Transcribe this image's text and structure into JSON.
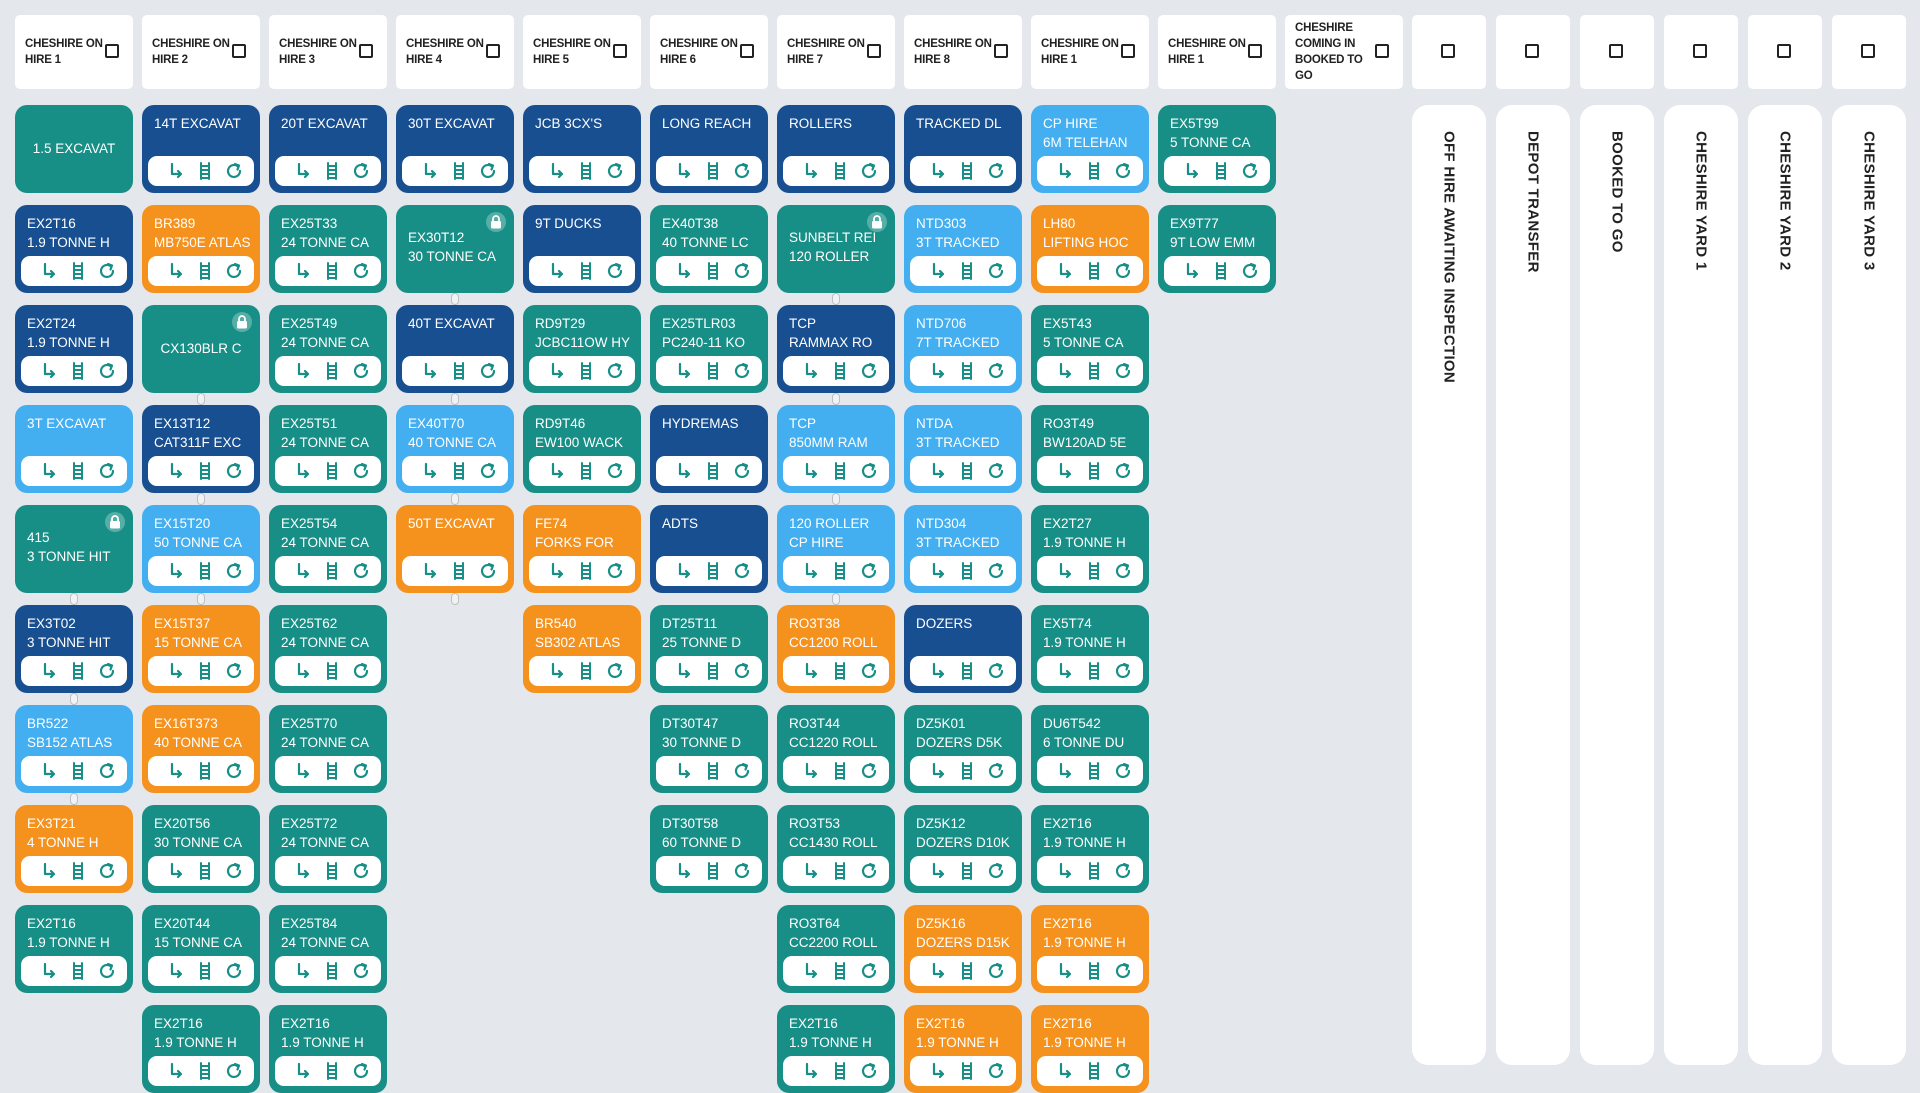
{
  "colors": {
    "teal": "#178f86",
    "navy": "#184f91",
    "sky": "#43aef0",
    "orange": "#f5921e",
    "background": "#e4e7eb"
  },
  "icons": [
    "link-icon",
    "ladder-icon",
    "refresh-icon",
    "lock-icon",
    "checkbox-icon"
  ],
  "headers": [
    {
      "label": "CHESHIRE ON HIRE 1"
    },
    {
      "label": "CHESHIRE ON HIRE 2"
    },
    {
      "label": "CHESHIRE ON HIRE 3"
    },
    {
      "label": "CHESHIRE ON HIRE 4"
    },
    {
      "label": "CHESHIRE ON HIRE 5"
    },
    {
      "label": "CHESHIRE ON HIRE 6"
    },
    {
      "label": "CHESHIRE ON HIRE 7"
    },
    {
      "label": "CHESHIRE ON HIRE 8"
    },
    {
      "label": "CHESHIRE ON HIRE 1"
    },
    {
      "label": "CHESHIRE ON HIRE 1"
    },
    {
      "label": "CHESHIRE COMING IN BOOKED TO GO"
    },
    {
      "label": ""
    },
    {
      "label": ""
    },
    {
      "label": ""
    },
    {
      "label": ""
    },
    {
      "label": ""
    },
    {
      "label": ""
    }
  ],
  "lanes": [
    {
      "label": "OFF HIRE AWAITING INSPECTION"
    },
    {
      "label": "DEPOT TRANSFER"
    },
    {
      "label": "BOOKED TO GO"
    },
    {
      "label": "CHESHIRE YARD 1"
    },
    {
      "label": "CHESHIRE YARD 2"
    },
    {
      "label": "CHESHIRE YARD 3"
    }
  ],
  "columns": [
    [
      {
        "l1": "1.5 EXCAVAT",
        "l2": "",
        "color": "teal",
        "bar": false
      },
      {
        "l1": "EX2T16",
        "l2": "1.9 TONNE H",
        "color": "navy",
        "bar": true
      },
      {
        "l1": "EX2T24",
        "l2": "1.9 TONNE H",
        "color": "navy",
        "bar": true
      },
      {
        "l1": "3T EXCAVAT",
        "l2": "",
        "color": "sky",
        "bar": true
      },
      {
        "l1": "415",
        "l2": "3 TONNE HIT",
        "color": "teal",
        "bar": false,
        "lock": true
      },
      {
        "l1": "EX3T02",
        "l2": "3 TONNE HIT",
        "color": "navy",
        "bar": true
      },
      {
        "l1": "BR522",
        "l2": "SB152 ATLAS",
        "color": "sky",
        "bar": true
      },
      {
        "l1": "EX3T21",
        "l2": "4 TONNE H",
        "color": "orange",
        "bar": true
      },
      {
        "l1": "EX2T16",
        "l2": "1.9 TONNE H",
        "color": "teal",
        "bar": true
      }
    ],
    [
      {
        "l1": "14T EXCAVAT",
        "l2": "",
        "color": "navy",
        "bar": true
      },
      {
        "l1": "BR389",
        "l2": "MB750E ATLAS",
        "color": "orange",
        "bar": true
      },
      {
        "l1": "CX130BLR C",
        "l2": "",
        "color": "teal",
        "bar": false,
        "lock": true
      },
      {
        "l1": "EX13T12",
        "l2": "CAT311F EXC",
        "color": "navy",
        "bar": true
      },
      {
        "l1": "EX15T20",
        "l2": "50 TONNE CA",
        "color": "sky",
        "bar": true
      },
      {
        "l1": "EX15T37",
        "l2": "15 TONNE CA",
        "color": "orange",
        "bar": true
      },
      {
        "l1": "EX16T373",
        "l2": "40 TONNE CA",
        "color": "orange",
        "bar": true
      },
      {
        "l1": "EX20T56",
        "l2": "30 TONNE CA",
        "color": "teal",
        "bar": true
      },
      {
        "l1": "EX20T44",
        "l2": "15 TONNE CA",
        "color": "teal",
        "bar": true
      },
      {
        "l1": "EX2T16",
        "l2": "1.9 TONNE H",
        "color": "teal",
        "bar": true
      }
    ],
    [
      {
        "l1": "20T EXCAVAT",
        "l2": "",
        "color": "navy",
        "bar": true
      },
      {
        "l1": "EX25T33",
        "l2": "24 TONNE CA",
        "color": "teal",
        "bar": true
      },
      {
        "l1": "EX25T49",
        "l2": "24 TONNE CA",
        "color": "teal",
        "bar": true
      },
      {
        "l1": "EX25T51",
        "l2": "24 TONNE CA",
        "color": "teal",
        "bar": true
      },
      {
        "l1": "EX25T54",
        "l2": "24 TONNE CA",
        "color": "teal",
        "bar": true
      },
      {
        "l1": "EX25T62",
        "l2": "24 TONNE CA",
        "color": "teal",
        "bar": true
      },
      {
        "l1": "EX25T70",
        "l2": "24 TONNE CA",
        "color": "teal",
        "bar": true
      },
      {
        "l1": "EX25T72",
        "l2": "24 TONNE CA",
        "color": "teal",
        "bar": true
      },
      {
        "l1": "EX25T84",
        "l2": "24 TONNE CA",
        "color": "teal",
        "bar": true
      },
      {
        "l1": "EX2T16",
        "l2": "1.9 TONNE H",
        "color": "teal",
        "bar": true
      }
    ],
    [
      {
        "l1": "30T EXCAVAT",
        "l2": "",
        "color": "navy",
        "bar": true
      },
      {
        "l1": "EX30T12",
        "l2": "30 TONNE CA",
        "color": "teal",
        "bar": false,
        "lock": true
      },
      {
        "l1": "40T EXCAVAT",
        "l2": "",
        "color": "navy",
        "bar": true
      },
      {
        "l1": "EX40T70",
        "l2": "40 TONNE CA",
        "color": "sky",
        "bar": true
      },
      {
        "l1": "50T EXCAVAT",
        "l2": "",
        "color": "orange",
        "bar": true
      }
    ],
    [
      {
        "l1": "JCB 3CX'S",
        "l2": "",
        "color": "navy",
        "bar": true
      },
      {
        "l1": "9T DUCKS",
        "l2": "",
        "color": "navy",
        "bar": true
      },
      {
        "l1": "RD9T29",
        "l2": "JCBC11OW HY",
        "color": "teal",
        "bar": true
      },
      {
        "l1": "RD9T46",
        "l2": "EW100 WACK",
        "color": "teal",
        "bar": true
      },
      {
        "l1": "FE74",
        "l2": "FORKS FOR",
        "color": "orange",
        "bar": true
      },
      {
        "l1": "BR540",
        "l2": "SB302 ATLAS",
        "color": "orange",
        "bar": true
      }
    ],
    [
      {
        "l1": "LONG REACH",
        "l2": "",
        "color": "navy",
        "bar": true
      },
      {
        "l1": "EX40T38",
        "l2": "40 TONNE LC",
        "color": "teal",
        "bar": true
      },
      {
        "l1": "EX25TLR03",
        "l2": "PC240-11 KO",
        "color": "teal",
        "bar": true
      },
      {
        "l1": "HYDREMAS",
        "l2": "",
        "color": "navy",
        "bar": true
      },
      {
        "l1": "ADTS",
        "l2": "",
        "color": "navy",
        "bar": true
      },
      {
        "l1": "DT25T11",
        "l2": "25 TONNE D",
        "color": "teal",
        "bar": true
      },
      {
        "l1": "DT30T47",
        "l2": "30 TONNE D",
        "color": "teal",
        "bar": true
      },
      {
        "l1": "DT30T58",
        "l2": "60 TONNE D",
        "color": "teal",
        "bar": true
      }
    ],
    [
      {
        "l1": "ROLLERS",
        "l2": "",
        "color": "navy",
        "bar": true
      },
      {
        "l1": "SUNBELT REI",
        "l2": "120 ROLLER",
        "color": "teal",
        "bar": false,
        "lock": true
      },
      {
        "l1": "TCP",
        "l2": "RAMMAX RO",
        "color": "navy",
        "bar": true
      },
      {
        "l1": "TCP",
        "l2": "850MM RAM",
        "color": "sky",
        "bar": true
      },
      {
        "l1": "120 ROLLER",
        "l2": "CP HIRE",
        "color": "sky",
        "bar": true
      },
      {
        "l1": "RO3T38",
        "l2": "CC1200 ROLL",
        "color": "orange",
        "bar": true
      },
      {
        "l1": "RO3T44",
        "l2": "CC1220 ROLL",
        "color": "teal",
        "bar": true
      },
      {
        "l1": "RO3T53",
        "l2": "CC1430 ROLL",
        "color": "teal",
        "bar": true
      },
      {
        "l1": "RO3T64",
        "l2": "CC2200 ROLL",
        "color": "teal",
        "bar": true
      },
      {
        "l1": "EX2T16",
        "l2": "1.9 TONNE H",
        "color": "teal",
        "bar": true
      }
    ],
    [
      {
        "l1": "TRACKED DL",
        "l2": "",
        "color": "navy",
        "bar": true
      },
      {
        "l1": "NTD303",
        "l2": "3T TRACKED",
        "color": "sky",
        "bar": true
      },
      {
        "l1": "NTD706",
        "l2": "7T TRACKED",
        "color": "sky",
        "bar": true
      },
      {
        "l1": "NTDA",
        "l2": "3T TRACKED",
        "color": "sky",
        "bar": true
      },
      {
        "l1": "NTD304",
        "l2": "3T TRACKED",
        "color": "sky",
        "bar": true
      },
      {
        "l1": "DOZERS",
        "l2": "",
        "color": "navy",
        "bar": true
      },
      {
        "l1": "DZ5K01",
        "l2": "DOZERS D5K",
        "color": "teal",
        "bar": true
      },
      {
        "l1": "DZ5K12",
        "l2": "DOZERS D10K",
        "color": "teal",
        "bar": true
      },
      {
        "l1": "DZ5K16",
        "l2": "DOZERS D15K",
        "color": "orange",
        "bar": true
      },
      {
        "l1": "EX2T16",
        "l2": "1.9 TONNE H",
        "color": "orange",
        "bar": true
      }
    ],
    [
      {
        "l1": "CP HIRE",
        "l2": "6M TELEHAN",
        "color": "sky",
        "bar": true
      },
      {
        "l1": "LH80",
        "l2": "LIFTING HOC",
        "color": "orange",
        "bar": true
      },
      {
        "l1": "EX5T43",
        "l2": "5 TONNE CA",
        "color": "teal",
        "bar": true
      },
      {
        "l1": "RO3T49",
        "l2": "BW120AD 5E",
        "color": "teal",
        "bar": true
      },
      {
        "l1": "EX2T27",
        "l2": "1.9 TONNE H",
        "color": "teal",
        "bar": true
      },
      {
        "l1": "EX5T74",
        "l2": "1.9 TONNE H",
        "color": "teal",
        "bar": true
      },
      {
        "l1": "DU6T542",
        "l2": "6 TONNE DU",
        "color": "teal",
        "bar": true
      },
      {
        "l1": "EX2T16",
        "l2": "1.9 TONNE H",
        "color": "teal",
        "bar": true
      },
      {
        "l1": "EX2T16",
        "l2": "1.9 TONNE H",
        "color": "orange",
        "bar": true
      },
      {
        "l1": "EX2T16",
        "l2": "1.9 TONNE H",
        "color": "orange",
        "bar": true
      }
    ],
    [
      {
        "l1": "EX5T99",
        "l2": "5 TONNE CA",
        "color": "teal",
        "bar": true
      },
      {
        "l1": "EX9T77",
        "l2": "9T LOW EMM",
        "color": "teal",
        "bar": true
      }
    ]
  ]
}
